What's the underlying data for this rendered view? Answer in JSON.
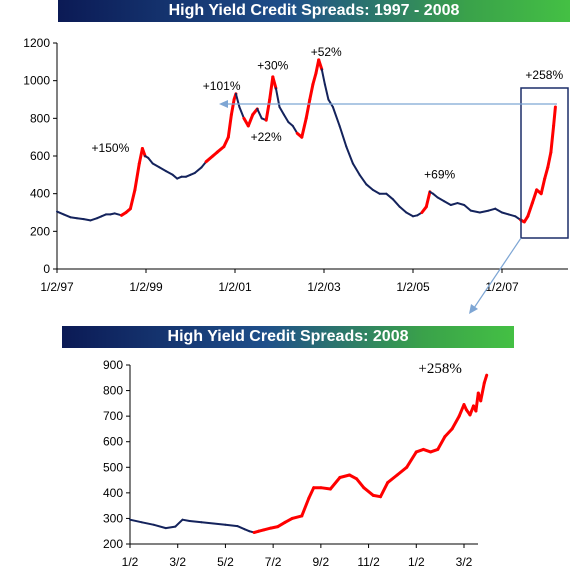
{
  "colors": {
    "series_base": "#14235c",
    "series_highlight": "#ff0000",
    "callout": "#7ea6d4",
    "box": "#1c2d68"
  },
  "chart_data": [
    {
      "type": "line",
      "title": "High Yield Credit Spreads: 1997 - 2008",
      "xlabel": "",
      "ylabel": "",
      "ylim": [
        0,
        1200
      ],
      "yticks": [
        "0",
        "200",
        "400",
        "600",
        "800",
        "1000",
        "1200"
      ],
      "xticks": [
        {
          "label": "1/2/97",
          "t": 1997.0
        },
        {
          "label": "1/2/99",
          "t": 1999.0
        },
        {
          "label": "1/2/01",
          "t": 2001.0
        },
        {
          "label": "1/2/03",
          "t": 2003.0
        },
        {
          "label": "1/2/05",
          "t": 2005.0
        },
        {
          "label": "1/2/07",
          "t": 2007.0
        }
      ],
      "x_range": [
        1997.0,
        2008.2
      ],
      "grid": false,
      "series": [
        {
          "points": [
            [
              1997.0,
              305
            ],
            [
              1997.15,
              290
            ],
            [
              1997.3,
              275
            ],
            [
              1997.45,
              270
            ],
            [
              1997.6,
              265
            ],
            [
              1997.75,
              258
            ],
            [
              1997.9,
              270
            ],
            [
              1998.0,
              280
            ],
            [
              1998.1,
              290
            ],
            [
              1998.2,
              290
            ],
            [
              1998.3,
              295
            ],
            [
              1998.45,
              285
            ],
            [
              1998.55,
              300
            ],
            [
              1998.65,
              320
            ],
            [
              1998.75,
              420
            ],
            [
              1998.85,
              560
            ],
            [
              1998.92,
              640
            ],
            [
              1998.98,
              600
            ],
            [
              1999.05,
              590
            ],
            [
              1999.15,
              560
            ],
            [
              1999.3,
              540
            ],
            [
              1999.45,
              520
            ],
            [
              1999.6,
              500
            ],
            [
              1999.7,
              480
            ],
            [
              1999.8,
              490
            ],
            [
              1999.9,
              490
            ],
            [
              2000.0,
              500
            ],
            [
              2000.1,
              510
            ],
            [
              2000.25,
              540
            ],
            [
              2000.35,
              570
            ],
            [
              2000.5,
              600
            ],
            [
              2000.6,
              620
            ],
            [
              2000.75,
              650
            ],
            [
              2000.85,
              700
            ],
            [
              2000.92,
              820
            ],
            [
              2000.98,
              900
            ],
            [
              2001.02,
              930
            ],
            [
              2001.1,
              860
            ],
            [
              2001.2,
              800
            ],
            [
              2001.3,
              760
            ],
            [
              2001.4,
              820
            ],
            [
              2001.5,
              850
            ],
            [
              2001.6,
              800
            ],
            [
              2001.7,
              790
            ],
            [
              2001.78,
              900
            ],
            [
              2001.85,
              1020
            ],
            [
              2001.92,
              960
            ],
            [
              2002.0,
              860
            ],
            [
              2002.1,
              820
            ],
            [
              2002.2,
              780
            ],
            [
              2002.3,
              760
            ],
            [
              2002.4,
              720
            ],
            [
              2002.5,
              700
            ],
            [
              2002.6,
              800
            ],
            [
              2002.68,
              900
            ],
            [
              2002.75,
              980
            ],
            [
              2002.82,
              1040
            ],
            [
              2002.88,
              1110
            ],
            [
              2002.95,
              1060
            ],
            [
              2003.02,
              980
            ],
            [
              2003.1,
              900
            ],
            [
              2003.2,
              860
            ],
            [
              2003.35,
              760
            ],
            [
              2003.5,
              650
            ],
            [
              2003.65,
              560
            ],
            [
              2003.8,
              500
            ],
            [
              2003.95,
              450
            ],
            [
              2004.1,
              420
            ],
            [
              2004.25,
              400
            ],
            [
              2004.4,
              400
            ],
            [
              2004.55,
              370
            ],
            [
              2004.7,
              330
            ],
            [
              2004.85,
              300
            ],
            [
              2005.0,
              280
            ],
            [
              2005.1,
              285
            ],
            [
              2005.2,
              300
            ],
            [
              2005.3,
              330
            ],
            [
              2005.38,
              410
            ],
            [
              2005.45,
              400
            ],
            [
              2005.55,
              380
            ],
            [
              2005.7,
              360
            ],
            [
              2005.85,
              340
            ],
            [
              2006.0,
              350
            ],
            [
              2006.15,
              340
            ],
            [
              2006.3,
              310
            ],
            [
              2006.5,
              300
            ],
            [
              2006.7,
              310
            ],
            [
              2006.85,
              320
            ],
            [
              2007.0,
              300
            ],
            [
              2007.15,
              290
            ],
            [
              2007.3,
              280
            ],
            [
              2007.42,
              260
            ],
            [
              2007.5,
              250
            ],
            [
              2007.58,
              280
            ],
            [
              2007.68,
              350
            ],
            [
              2007.78,
              420
            ],
            [
              2007.88,
              400
            ],
            [
              2007.96,
              480
            ],
            [
              2008.03,
              540
            ],
            [
              2008.1,
              620
            ],
            [
              2008.16,
              760
            ],
            [
              2008.2,
              860
            ]
          ],
          "highlight_ranges": [
            [
              1998.45,
              1998.98
            ],
            [
              2000.35,
              2001.02
            ],
            [
              2001.2,
              2001.5
            ],
            [
              2001.7,
              2001.92
            ],
            [
              2002.4,
              2002.95
            ],
            [
              2005.2,
              2005.4
            ],
            [
              2007.45,
              2008.2
            ]
          ]
        }
      ],
      "annotations": [
        {
          "text": "+150%",
          "t": 1998.2,
          "v": 620
        },
        {
          "text": "+101%",
          "t": 2000.7,
          "v": 950
        },
        {
          "text": "+30%",
          "t": 2001.85,
          "v": 1060
        },
        {
          "text": "+22%",
          "t": 2001.7,
          "v": 680
        },
        {
          "text": "+52%",
          "t": 2003.05,
          "v": 1130
        },
        {
          "text": "+69%",
          "t": 2005.6,
          "v": 480
        },
        {
          "text": "+258%",
          "t": 2007.95,
          "v": 1010
        }
      ]
    },
    {
      "type": "line",
      "title": "High Yield Credit Spreads: 2008",
      "xlabel": "",
      "ylabel": "",
      "ylim": [
        200,
        900
      ],
      "yticks": [
        "200",
        "300",
        "400",
        "500",
        "600",
        "700",
        "800",
        "900"
      ],
      "xticks": [
        "1/2",
        "3/2",
        "5/2",
        "7/2",
        "9/2",
        "11/2",
        "1/2",
        "3/2"
      ],
      "x_range": [
        0,
        14.6
      ],
      "grid": false,
      "series": [
        {
          "points": [
            [
              0,
              295
            ],
            [
              0.5,
              285
            ],
            [
              1.0,
              275
            ],
            [
              1.5,
              262
            ],
            [
              1.9,
              268
            ],
            [
              2.2,
              295
            ],
            [
              2.5,
              290
            ],
            [
              3.0,
              285
            ],
            [
              3.5,
              280
            ],
            [
              4.0,
              275
            ],
            [
              4.5,
              270
            ],
            [
              4.8,
              258
            ],
            [
              5.0,
              250
            ],
            [
              5.2,
              245
            ],
            [
              5.4,
              250
            ],
            [
              5.6,
              255
            ],
            [
              5.9,
              262
            ],
            [
              6.2,
              268
            ],
            [
              6.5,
              285
            ],
            [
              6.8,
              300
            ],
            [
              7.2,
              310
            ],
            [
              7.5,
              380
            ],
            [
              7.7,
              420
            ],
            [
              8.0,
              420
            ],
            [
              8.4,
              415
            ],
            [
              8.8,
              460
            ],
            [
              9.2,
              470
            ],
            [
              9.5,
              455
            ],
            [
              9.8,
              420
            ],
            [
              10.2,
              390
            ],
            [
              10.5,
              385
            ],
            [
              10.8,
              440
            ],
            [
              11.2,
              470
            ],
            [
              11.6,
              500
            ],
            [
              12.0,
              560
            ],
            [
              12.3,
              570
            ],
            [
              12.6,
              560
            ],
            [
              12.9,
              570
            ],
            [
              13.2,
              620
            ],
            [
              13.5,
              650
            ],
            [
              13.8,
              700
            ],
            [
              14.0,
              745
            ],
            [
              14.1,
              725
            ],
            [
              14.25,
              705
            ],
            [
              14.4,
              740
            ],
            [
              14.5,
              720
            ],
            [
              14.6,
              790
            ],
            [
              14.7,
              760
            ],
            [
              14.85,
              830
            ],
            [
              14.95,
              860
            ]
          ],
          "highlight_ranges": [
            [
              5.3,
              14.95
            ]
          ]
        }
      ],
      "annotations": [
        {
          "text": "+258%",
          "t": 13.0,
          "v": 860
        }
      ]
    }
  ]
}
